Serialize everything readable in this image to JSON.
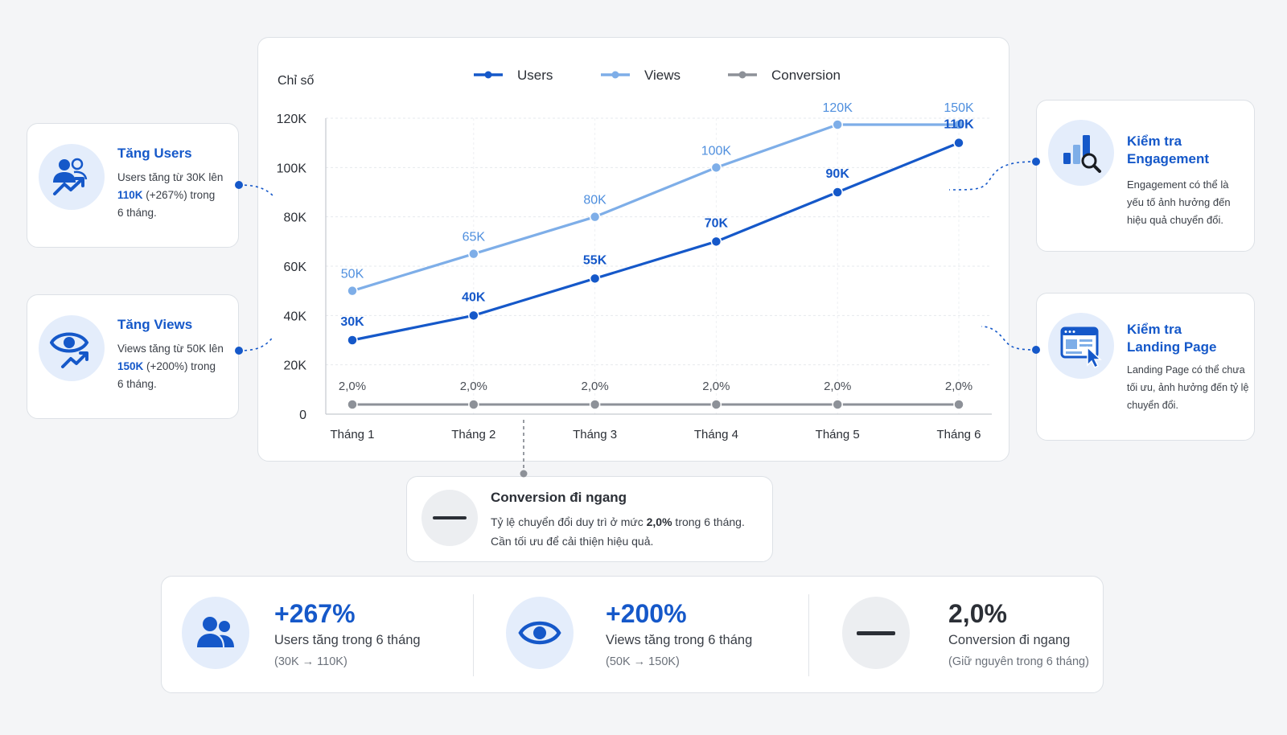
{
  "chart_data": {
    "type": "line",
    "ylabel": "Chỉ số",
    "categories": [
      "Tháng 1",
      "Tháng 2",
      "Tháng 3",
      "Tháng 4",
      "Tháng 5",
      "Tháng 6"
    ],
    "yticks": [
      "0",
      "20K",
      "40K",
      "60K",
      "80K",
      "100K",
      "120K"
    ],
    "ylim": [
      0,
      120000
    ],
    "legend_position": "top",
    "grid": true,
    "series": [
      {
        "name": "Users",
        "color": "#1558c9",
        "values": [
          30000,
          40000,
          55000,
          70000,
          90000,
          110000
        ],
        "labels": [
          "30K",
          "40K",
          "55K",
          "70K",
          "90K",
          "110K"
        ]
      },
      {
        "name": "Views",
        "color": "#7eaee8",
        "values": [
          50000,
          65000,
          80000,
          100000,
          120000,
          150000
        ],
        "labels": [
          "50K",
          "65K",
          "80K",
          "100K",
          "120K",
          "150K"
        ]
      },
      {
        "name": "Conversion",
        "color": "#8d9198",
        "values": [
          2.0,
          2.0,
          2.0,
          2.0,
          2.0,
          2.0
        ],
        "labels": [
          "2,0%",
          "2,0%",
          "2,0%",
          "2,0%",
          "2,0%",
          "2,0%"
        ]
      }
    ]
  },
  "left_cards": {
    "users": {
      "title": "Tăng Users",
      "line1": "Users tăng từ 30K lên",
      "highlight": "110K",
      "line2_rest": " (+267%) trong",
      "line3": "6 tháng."
    },
    "views": {
      "title": "Tăng Views",
      "line1": "Views tăng từ 50K lên",
      "highlight": "150K",
      "line2_rest": " (+200%) trong",
      "line3": "6 tháng."
    }
  },
  "right_cards": {
    "engagement": {
      "title_1": "Kiểm tra",
      "title_2": "Engagement",
      "line1": "Engagement có thể là",
      "line2": "yếu tố ảnh hưởng đến",
      "line3": "hiệu quả chuyển đổi."
    },
    "landing": {
      "title_1": "Kiểm tra",
      "title_2": "Landing Page",
      "line1": "Landing Page có thể chưa",
      "line2": "tối ưu, ảnh hưởng đến tỷ lệ",
      "line3": "chuyển đổi."
    }
  },
  "conversion_note": {
    "title": "Conversion đi ngang",
    "line1_pre": "Tỷ lệ chuyển đổi duy trì ở mức ",
    "line1_bold": "2,0%",
    "line1_post": " trong 6 tháng.",
    "line2": "Cần tối ưu để cải thiện hiệu quả."
  },
  "summary": [
    {
      "value": "+267%",
      "label": "Users tăng trong 6 tháng",
      "sub": "(30K → 110K)",
      "color": "#1558c9"
    },
    {
      "value": "+200%",
      "label": "Views tăng trong 6 tháng",
      "sub": "(50K → 150K)",
      "color": "#1558c9"
    },
    {
      "value": "2,0%",
      "label": "Conversion đi ngang",
      "sub": "(Giữ nguyên trong 6 tháng)",
      "color": "#2b2f36"
    }
  ]
}
